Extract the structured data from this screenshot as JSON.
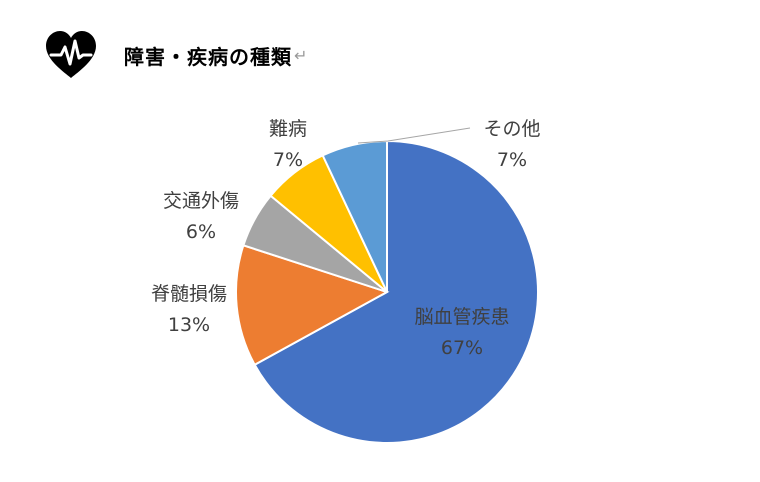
{
  "header": {
    "title": "障害・疾病の種類",
    "return_mark": "↵",
    "icon": "heart-pulse-icon"
  },
  "chart_data": {
    "type": "pie",
    "title": "",
    "slices": [
      {
        "label": "脳血管疾患",
        "value": 67,
        "display": "67%",
        "color": "#4472C4"
      },
      {
        "label": "脊髄損傷",
        "value": 13,
        "display": "13%",
        "color": "#ED7D31"
      },
      {
        "label": "交通外傷",
        "value": 6,
        "display": "6%",
        "color": "#A5A5A5"
      },
      {
        "label": "難病",
        "value": 7,
        "display": "7%",
        "color": "#FFC000"
      },
      {
        "label": "その他",
        "value": 7,
        "display": "7%",
        "color": "#5B9BD5"
      }
    ],
    "start_angle_deg": 0,
    "direction": "clockwise",
    "label_color": "#404040",
    "legend": "none"
  }
}
